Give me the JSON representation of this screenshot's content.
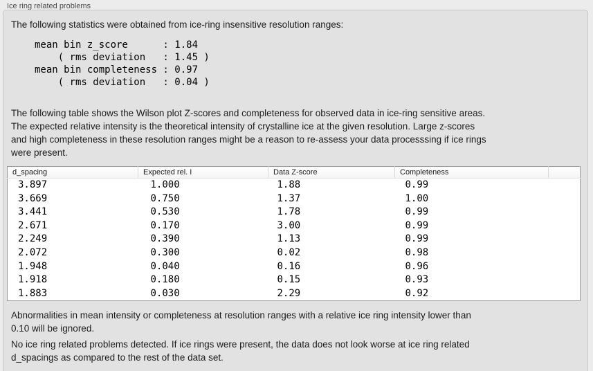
{
  "group": {
    "title": "Ice ring related problems"
  },
  "intro": "The following statistics were obtained from ice-ring insensitive resolution ranges:",
  "stats_block": "mean bin z_score      : 1.84\n    ( rms deviation   : 1.45 )\nmean bin completeness : 0.97\n    ( rms deviation   : 0.04 )",
  "stats": {
    "mean_bin_z_score": "1.84",
    "z_score_rms_deviation": "1.45",
    "mean_bin_completeness": "0.97",
    "completeness_rms_deviation": "0.04"
  },
  "table_description": "The following table shows the Wilson plot Z-scores and completeness for observed data in ice-ring sensitive areas.\nThe expected relative intensity is the theoretical intensity of crystalline ice at the given resolution. Large z-scores\nand high completeness in these resolution ranges might be a reason to re-assess your data processsing if ice rings\nwere present.",
  "table": {
    "columns": [
      "d_spacing",
      "Expected rel. I",
      "Data Z-score",
      "Completeness"
    ],
    "rows": [
      [
        "3.897",
        "1.000",
        "1.88",
        "0.99"
      ],
      [
        "3.669",
        "0.750",
        "1.37",
        "1.00"
      ],
      [
        "3.441",
        "0.530",
        "1.78",
        "0.99"
      ],
      [
        "2.671",
        "0.170",
        "3.00",
        "0.99"
      ],
      [
        "2.249",
        "0.390",
        "1.13",
        "0.99"
      ],
      [
        "2.072",
        "0.300",
        "0.02",
        "0.98"
      ],
      [
        "1.948",
        "0.040",
        "0.16",
        "0.96"
      ],
      [
        "1.918",
        "0.180",
        "0.15",
        "0.93"
      ],
      [
        "1.883",
        "0.030",
        "2.29",
        "0.92"
      ]
    ]
  },
  "ignore_note": "Abnormalities in mean intensity or completeness at resolution ranges with a relative ice ring intensity lower than\n0.10 will be ignored.",
  "conclusion": "No ice ring related problems detected. If ice rings were present, the data does not look worse at ice ring related\nd_spacings as compared to the rest of the data set.",
  "colors": {
    "page_bg": "#ececec",
    "panel_bg": "#e2e2e2",
    "panel_border": "#c6c6c6",
    "table_border": "#9b9b9b",
    "table_bg": "#ffffff"
  }
}
